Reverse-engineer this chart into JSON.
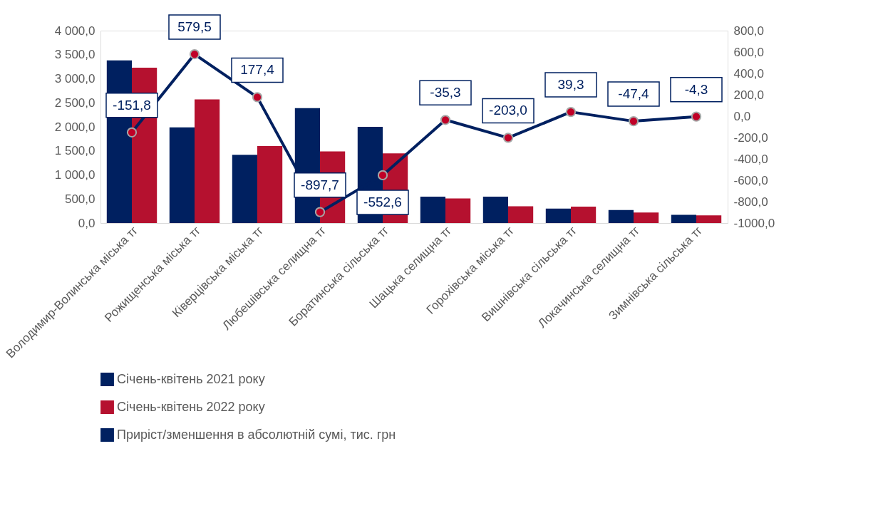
{
  "chart_data": {
    "type": "bar",
    "categories": [
      "Володимир-Волинська міська тг",
      "Рожищенська міська тг",
      "Ківерцівська міська тг",
      "Любешівська селищна тг",
      "Боратинська сільська тг",
      "Шацька селищна тг",
      "Горохівська міська тг",
      "Вишнівська сільська тг",
      "Локачинська селищна тг",
      "Зимнівська сільська тг"
    ],
    "series": [
      {
        "name": "Січень-квітень 2021 року",
        "type": "bar",
        "color": "#002060",
        "values": [
          3380,
          1990,
          1420,
          2390,
          2000,
          550,
          550,
          300,
          270,
          170
        ]
      },
      {
        "name": "Січень-квітень 2022 року",
        "type": "bar",
        "color": "#b5112f",
        "values": [
          3230,
          2570,
          1600,
          1490,
          1450,
          510,
          350,
          340,
          220,
          160
        ]
      },
      {
        "name": "Приріст/зменшення в абсолютній сумі, тис. грн",
        "type": "line",
        "axis": "y2",
        "color": "#002060",
        "marker": "circle",
        "values": [
          -151.8,
          579.5,
          177.4,
          -897.7,
          -552.6,
          -35.3,
          -203.0,
          39.3,
          -47.4,
          -4.3
        ],
        "value_labels": [
          "-151,8",
          "579,5",
          "177,4",
          "-897,7",
          "-552,6",
          "-35,3",
          "-203,0",
          "39,3",
          "-47,4",
          "-4,3"
        ]
      }
    ],
    "ylim": [
      0,
      4000
    ],
    "yticks": [
      {
        "value": 0,
        "label": "0,0"
      },
      {
        "value": 500,
        "label": "500,0"
      },
      {
        "value": 1000,
        "label": "1 000,0"
      },
      {
        "value": 1500,
        "label": "1 500,0"
      },
      {
        "value": 2000,
        "label": "2 000,0"
      },
      {
        "value": 2500,
        "label": "2 500,0"
      },
      {
        "value": 3000,
        "label": "3 000,0"
      },
      {
        "value": 3500,
        "label": "3 500,0"
      },
      {
        "value": 4000,
        "label": "4 000,0"
      }
    ],
    "y2lim": [
      -1000,
      800
    ],
    "y2ticks": [
      {
        "value": -1000,
        "label": "-1000,0"
      },
      {
        "value": -800,
        "label": "-800,0"
      },
      {
        "value": -600,
        "label": "-600,0"
      },
      {
        "value": -400,
        "label": "-400,0"
      },
      {
        "value": -200,
        "label": "-200,0"
      },
      {
        "value": 0,
        "label": "0,0"
      },
      {
        "value": 200,
        "label": "200,0"
      },
      {
        "value": 400,
        "label": "400,0"
      },
      {
        "value": 600,
        "label": "600,0"
      },
      {
        "value": 800,
        "label": "800,0"
      }
    ],
    "grid": false,
    "legend": "bottom"
  }
}
